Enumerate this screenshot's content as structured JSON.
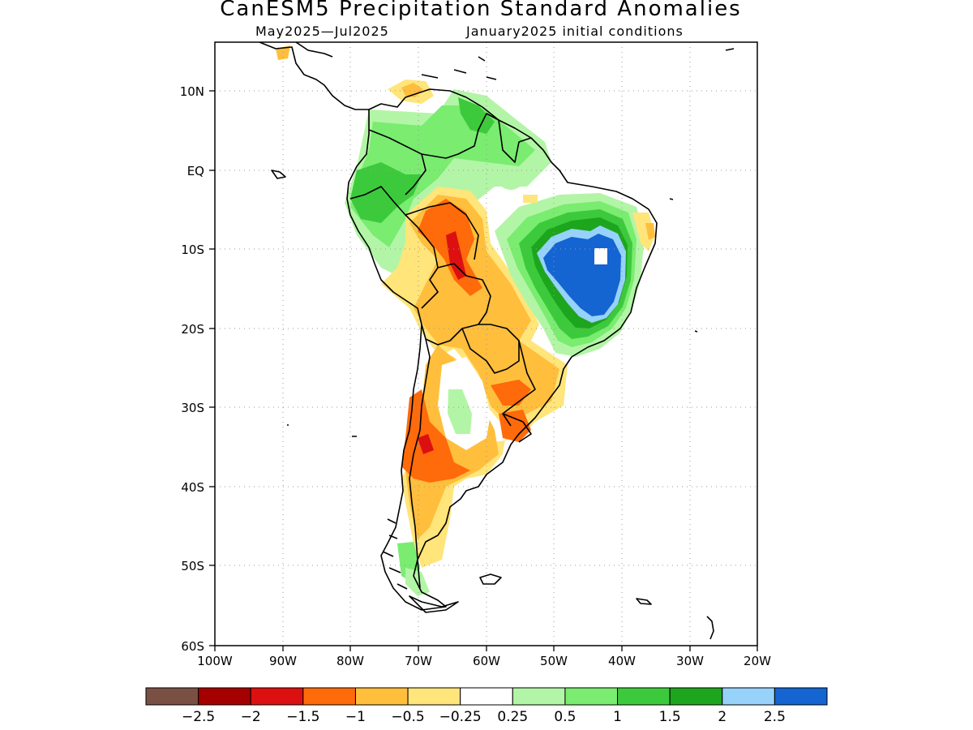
{
  "title": "CanESM5 Precipitation Standard Anomalies",
  "subtitle_left": "May2025—Jul2025",
  "subtitle_right": "January2025 initial conditions",
  "axes": {
    "lat_ticks": [
      "10N",
      "EQ",
      "10S",
      "20S",
      "30S",
      "40S",
      "50S",
      "60S"
    ],
    "lon_ticks": [
      "100W",
      "90W",
      "80W",
      "70W",
      "60W",
      "50W",
      "40W",
      "30W",
      "20W"
    ]
  },
  "colorbar": {
    "colors": [
      "#7a5044",
      "#a50000",
      "#dc1010",
      "#ff6a0a",
      "#ffbe3c",
      "#ffe57a",
      "#ffffff",
      "#b3f5a6",
      "#7aec70",
      "#3cca3c",
      "#1ea51e",
      "#96d2fa",
      "#1464d2"
    ],
    "labels": [
      "−2.5",
      "−2",
      "−1.5",
      "−1",
      "−0.5",
      "−0.25",
      "0.25",
      "0.5",
      "1",
      "1.5",
      "2",
      "2.5"
    ]
  }
}
